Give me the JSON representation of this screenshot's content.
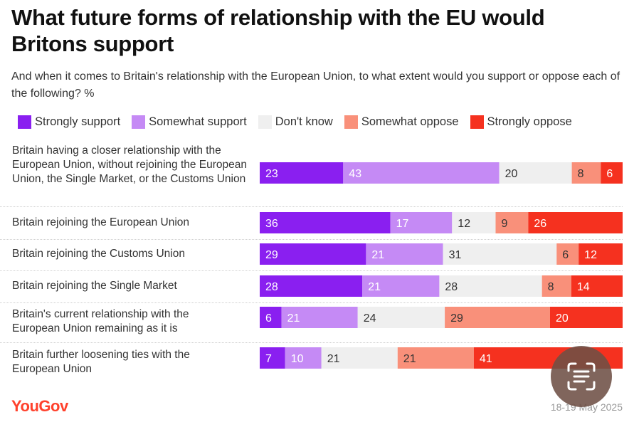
{
  "title": "What future forms of relationship with the EU would Britons support",
  "subtitle": "And when it comes to Britain's relationship with the European Union, to what extent would you support or oppose each of the following? %",
  "brand": "YouGov",
  "date": "18-19 May 2025",
  "scan_button_icon": "text-scan-icon",
  "chart_data": {
    "type": "bar",
    "orientation": "horizontal-stacked",
    "title": "What future forms of relationship with the EU would Britons support",
    "series": [
      {
        "name": "Strongly support",
        "color": "#8a1ff0",
        "label_color": "#ffffff",
        "values": [
          23,
          36,
          29,
          28,
          6,
          7
        ]
      },
      {
        "name": "Somewhat support",
        "color": "#c58af5",
        "label_color": "#ffffff",
        "values": [
          43,
          17,
          21,
          21,
          21,
          10
        ]
      },
      {
        "name": "Don't know",
        "color": "#efefef",
        "label_color": "#333333",
        "values": [
          20,
          12,
          31,
          28,
          24,
          21
        ]
      },
      {
        "name": "Somewhat oppose",
        "color": "#f9907a",
        "label_color": "#333333",
        "values": [
          8,
          9,
          6,
          8,
          29,
          21
        ]
      },
      {
        "name": "Strongly oppose",
        "color": "#f5311f",
        "label_color": "#ffffff",
        "values": [
          6,
          26,
          12,
          14,
          20,
          41
        ]
      }
    ],
    "categories": [
      "Britain having a closer relationship with the European Union, without rejoining the European Union, the Single Market, or the Customs Union",
      "Britain rejoining the European Union",
      "Britain rejoining the Customs Union",
      "Britain rejoining the Single Market",
      "Britain's current relationship with the European Union remaining as it is",
      "Britain further loosening ties with the European Union"
    ],
    "xlim": [
      0,
      100
    ]
  }
}
